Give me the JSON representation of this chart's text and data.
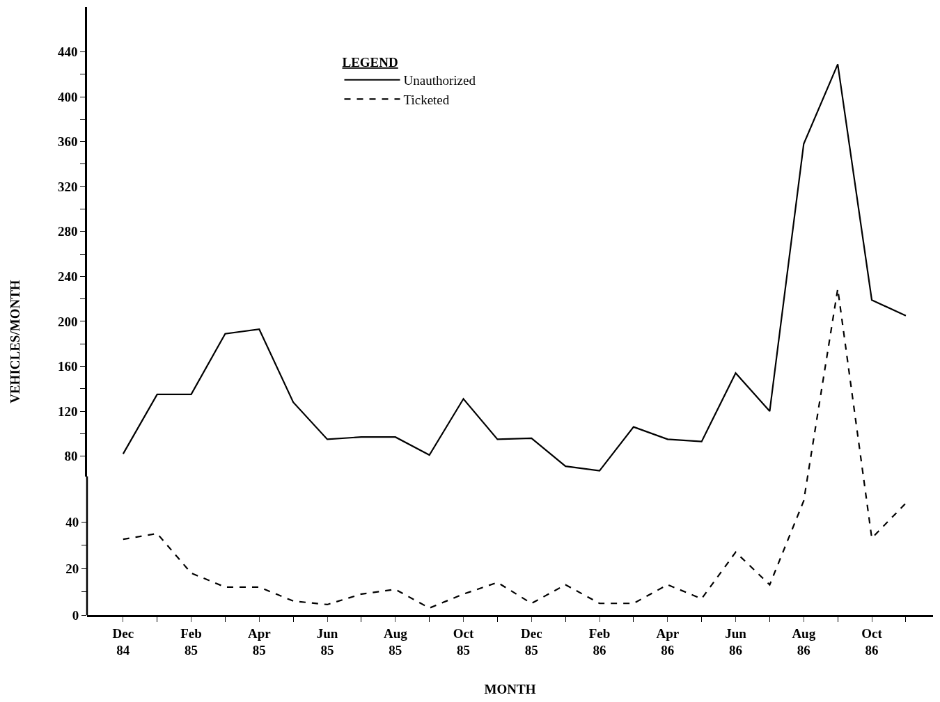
{
  "chart_data": {
    "type": "line",
    "xlabel": "MONTH",
    "y2label": "VEHICLES/MONTH",
    "legend_title": "LEGEND",
    "legend": "top left",
    "grid": false,
    "marker": "none",
    "categories": [
      "Dec\n84",
      null,
      "Feb\n85",
      null,
      "Apr\n85",
      null,
      "Jun\n85",
      null,
      "Aug\n85",
      null,
      "Oct\n85",
      null,
      "Dec\n85",
      null,
      "Feb\n86",
      null,
      "Apr\n86",
      null,
      "Jun\n86",
      null,
      "Aug\n86",
      null,
      "Oct\n86",
      null
    ],
    "series": [
      {
        "name": "Unauthorized",
        "color": "#000000",
        "line_style": "solid",
        "axis": "y2",
        "values": [
          82,
          135,
          135,
          189,
          193,
          128,
          95,
          97,
          97,
          81,
          131,
          95,
          96,
          71,
          67,
          106,
          95,
          93,
          154,
          120,
          358,
          429,
          219,
          205
        ]
      },
      {
        "name": "Ticketed",
        "color": "#000000",
        "line_style": "dashed",
        "values": [
          32.5,
          35,
          18,
          12,
          12,
          6,
          4.5,
          9,
          11,
          3,
          9,
          14,
          5,
          13,
          5,
          5,
          13,
          7,
          27,
          13,
          49,
          140,
          33,
          48
        ]
      }
    ],
    "ylim": [
      0,
      261
    ],
    "yticks": [
      0,
      {
        "value": 10,
        "label": null
      },
      20,
      {
        "value": 30,
        "label": null
      },
      40
    ],
    "y2lim": [
      62,
      480
    ],
    "y2ticks": [
      80,
      {
        "value": 100,
        "label": null
      },
      120,
      {
        "value": 140,
        "label": null
      },
      160,
      {
        "value": 180,
        "label": null
      },
      200,
      {
        "value": 220,
        "label": null
      },
      240,
      {
        "value": 260,
        "label": null
      },
      280,
      {
        "value": 300,
        "label": null
      },
      320,
      {
        "value": 340,
        "label": null
      },
      360,
      {
        "value": 380,
        "label": null
      },
      400,
      {
        "value": 420,
        "label": null
      },
      440
    ]
  }
}
